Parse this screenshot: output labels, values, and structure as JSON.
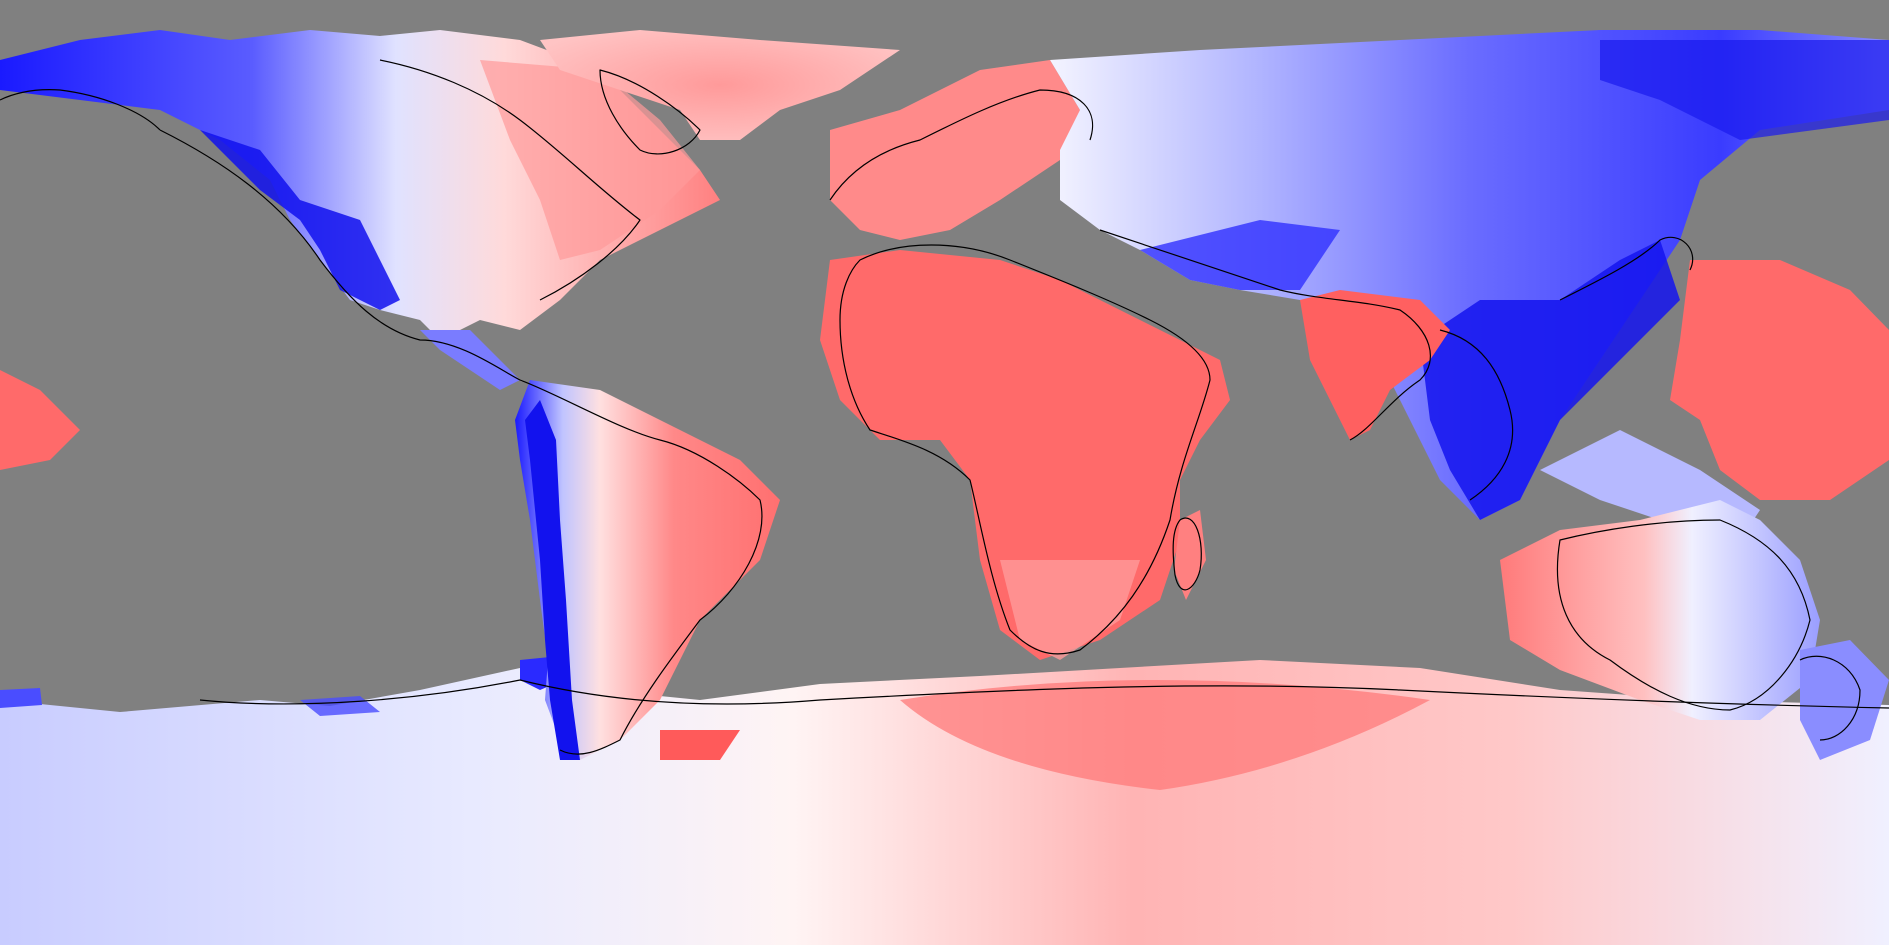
{
  "map": {
    "projection": "equirectangular",
    "colors": {
      "ocean": "#808080",
      "positive": "#ff6060",
      "positive_light": "#ffb0b0",
      "neutral": "#ffffff",
      "negative_light": "#b8bcff",
      "negative": "#0000ee"
    },
    "legend": "none",
    "labels": []
  }
}
